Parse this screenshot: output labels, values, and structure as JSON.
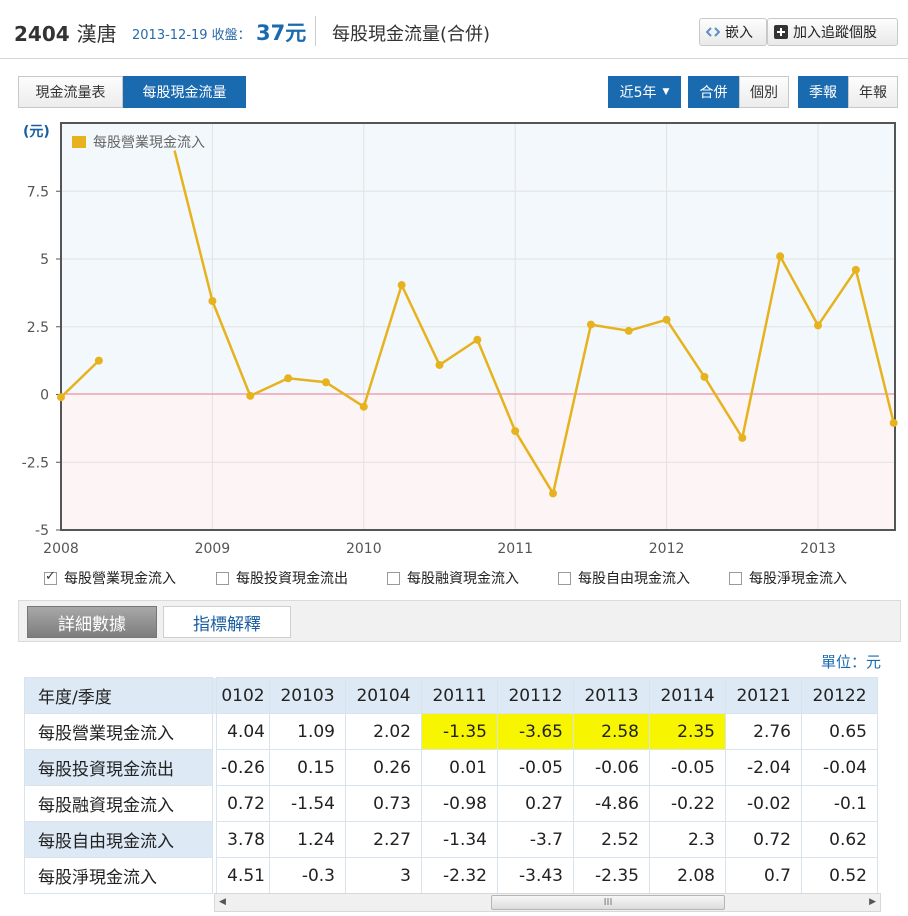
{
  "header": {
    "stock_code": "2404",
    "stock_name": "漢唐",
    "date_label": "2013-12-19 收盤：",
    "close_price": "37元",
    "page_title": "每股現金流量(合併)",
    "embed_label": "嵌入",
    "track_label": "加入追蹤個股"
  },
  "tabs": {
    "cashflow_table": "現金流量表",
    "per_share": "每股現金流量",
    "range": "近5年",
    "consolidated": "合併",
    "individual": "個別",
    "quarterly": "季報",
    "annual": "年報"
  },
  "chart_data": {
    "type": "line",
    "ylabel": "(元)",
    "ylim": [
      -5,
      10
    ],
    "y_ticks": [
      "7.5",
      "5",
      "2.5",
      "0",
      "-2.5",
      "-5"
    ],
    "x_ticks": [
      "2008",
      "2009",
      "2010",
      "2011",
      "2012",
      "2013"
    ],
    "grid": true,
    "legend_position": "top-left",
    "x": [
      2008.0,
      2008.25,
      2008.75,
      2009.0,
      2009.25,
      2009.5,
      2009.75,
      2010.0,
      2010.25,
      2010.5,
      2010.75,
      2011.0,
      2011.25,
      2011.5,
      2011.75,
      2012.0,
      2012.25,
      2012.5,
      2012.75,
      2013.0,
      2013.25,
      2013.5
    ],
    "series": [
      {
        "name": "每股營業現金流入",
        "color": "#e6b31e",
        "values": [
          -0.1,
          1.25,
          9.0,
          3.45,
          -0.05,
          0.6,
          0.45,
          -0.45,
          4.04,
          1.09,
          2.02,
          -1.35,
          -3.65,
          2.58,
          2.35,
          2.76,
          0.65,
          -1.6,
          5.1,
          2.55,
          4.6,
          -1.05
        ]
      }
    ]
  },
  "series_toggles": [
    {
      "label": "每股營業現金流入",
      "checked": true
    },
    {
      "label": "每股投資現金流出",
      "checked": false
    },
    {
      "label": "每股融資現金流入",
      "checked": false
    },
    {
      "label": "每股自由現金流入",
      "checked": false
    },
    {
      "label": "每股淨現金流入",
      "checked": false
    }
  ],
  "detail": {
    "tab_data": "詳細數據",
    "tab_explain": "指標解釋",
    "unit": "單位：元"
  },
  "table": {
    "corner": "年度/季度",
    "columns": [
      "0102",
      "20103",
      "20104",
      "20111",
      "20112",
      "20113",
      "20114",
      "20121",
      "20122"
    ],
    "rows": [
      {
        "label": "每股營業現金流入",
        "values": [
          "4.04",
          "1.09",
          "2.02",
          "-1.35",
          "-3.65",
          "2.58",
          "2.35",
          "2.76",
          "0.65"
        ],
        "highlight": [
          3,
          4,
          5,
          6
        ]
      },
      {
        "label": "每股投資現金流出",
        "values": [
          "-0.26",
          "0.15",
          "0.26",
          "0.01",
          "-0.05",
          "-0.06",
          "-0.05",
          "-2.04",
          "-0.04"
        ],
        "highlight": []
      },
      {
        "label": "每股融資現金流入",
        "values": [
          "0.72",
          "-1.54",
          "0.73",
          "-0.98",
          "0.27",
          "-4.86",
          "-0.22",
          "-0.02",
          "-0.1"
        ],
        "highlight": []
      },
      {
        "label": "每股自由現金流入",
        "values": [
          "3.78",
          "1.24",
          "2.27",
          "-1.34",
          "-3.7",
          "2.52",
          "2.3",
          "0.72",
          "0.62"
        ],
        "highlight": []
      },
      {
        "label": "每股淨現金流入",
        "values": [
          "4.51",
          "-0.3",
          "3",
          "-2.32",
          "-3.43",
          "-2.35",
          "2.08",
          "0.7",
          "0.52"
        ],
        "highlight": []
      }
    ],
    "scroll_grip": "III"
  }
}
